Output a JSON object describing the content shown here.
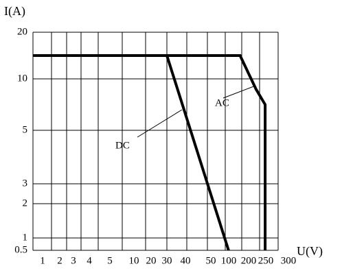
{
  "chart_data": {
    "type": "line",
    "x_label": "U(V)",
    "y_label": "I(A)",
    "xlim": [
      1,
      300
    ],
    "ylim": [
      0.5,
      20
    ],
    "xticks": [
      1,
      2,
      3,
      4,
      5,
      10,
      20,
      30,
      40,
      50,
      100,
      200,
      250,
      300
    ],
    "yticks": [
      0.5,
      1,
      2,
      3,
      5,
      10,
      20
    ],
    "grid": true,
    "series": [
      {
        "name": "AC",
        "color": "#000000",
        "x": [
          1,
          190,
          240,
          265,
          265
        ],
        "values": [
          15,
          15,
          9,
          7.5,
          0.5
        ]
      },
      {
        "name": "DC",
        "color": "#000000",
        "x": [
          30,
          120
        ],
        "values": [
          15,
          0.5
        ]
      }
    ]
  }
}
